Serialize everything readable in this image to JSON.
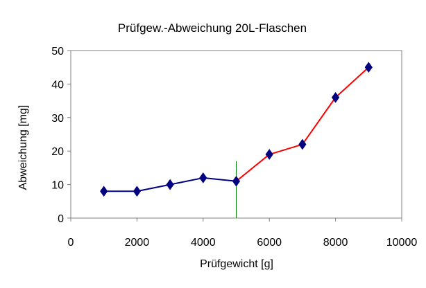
{
  "chart_data": {
    "type": "line",
    "title": "Prüfgew.-Abweichung 20L-Flaschen",
    "xlabel": "Prüfgewicht [g]",
    "ylabel": "Abweichung [mg]",
    "xlim": [
      0,
      10000
    ],
    "ylim": [
      0,
      50
    ],
    "x_ticks": [
      0,
      2000,
      4000,
      6000,
      8000,
      10000
    ],
    "y_ticks": [
      0,
      10,
      20,
      30,
      40,
      50
    ],
    "grid": false,
    "legend": "none",
    "series": [
      {
        "points": [
          [
            1000,
            8
          ],
          [
            2000,
            8
          ],
          [
            3000,
            10
          ],
          [
            4000,
            12
          ],
          [
            5000,
            11
          ]
        ],
        "line_color": "#000080",
        "marker": "diamond",
        "marker_color": "#000080"
      },
      {
        "points": [
          [
            5000,
            11
          ],
          [
            6000,
            19
          ],
          [
            7000,
            22
          ],
          [
            8000,
            36
          ],
          [
            9000,
            45
          ]
        ],
        "line_color": "#ff0000",
        "marker": "diamond",
        "marker_color": "#000080"
      }
    ],
    "annotations": [
      {
        "type": "vertical-line",
        "x": 5000,
        "y_from": 0,
        "y_to": 17,
        "color": "#008000"
      }
    ]
  }
}
